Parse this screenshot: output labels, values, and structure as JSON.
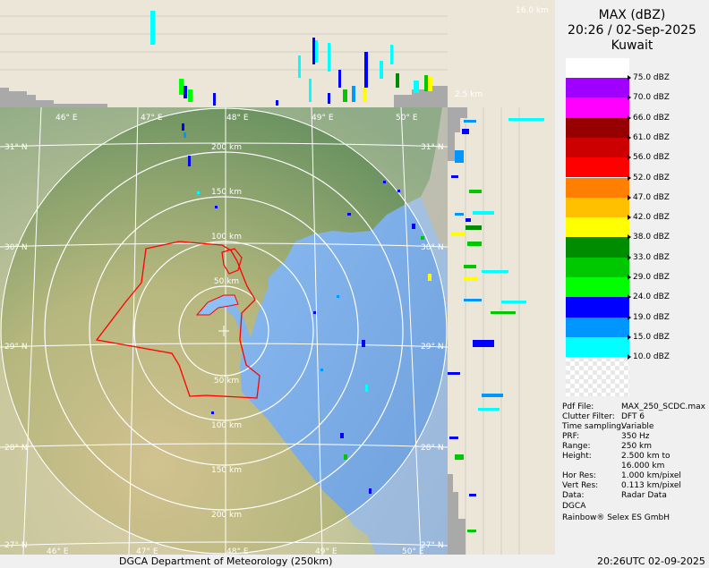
{
  "title": {
    "product": "MAX (dBZ)",
    "datetime": "20:26 / 02-Sep-2025",
    "site": "Kuwait"
  },
  "height_labels": {
    "top": "16.0 km",
    "bottom": "2.5 km"
  },
  "legend_levels": [
    {
      "label": "75.0 dBZ",
      "color": "#a000ff"
    },
    {
      "label": "70.0 dBZ",
      "color": "#ff00ff"
    },
    {
      "label": "66.0 dBZ",
      "color": "#960000"
    },
    {
      "label": "61.0 dBZ",
      "color": "#cc0000"
    },
    {
      "label": "56.0 dBZ",
      "color": "#ff0000"
    },
    {
      "label": "52.0 dBZ",
      "color": "#ff8000"
    },
    {
      "label": "47.0 dBZ",
      "color": "#ffc000"
    },
    {
      "label": "42.0 dBZ",
      "color": "#ffff00"
    },
    {
      "label": "38.0 dBZ",
      "color": "#008c00"
    },
    {
      "label": "33.0 dBZ",
      "color": "#00c800"
    },
    {
      "label": "29.0 dBZ",
      "color": "#00ff00"
    },
    {
      "label": "24.0 dBZ",
      "color": "#0000ff"
    },
    {
      "label": "19.0 dBZ",
      "color": "#0096ff"
    },
    {
      "label": "15.0 dBZ",
      "color": "#00ffff"
    },
    {
      "label": "10.0 dBZ",
      "color": "#ffffff"
    }
  ],
  "info": [
    {
      "key": "Pdf File:",
      "value": "MAX_250_SCDC.max"
    },
    {
      "key": "Clutter Filter:",
      "value": "DFT 6"
    },
    {
      "key": "Time sampling:",
      "value": "Variable"
    },
    {
      "key": "PRF:",
      "value": "350 Hz"
    },
    {
      "key": "Range:",
      "value": "250 km"
    },
    {
      "key": "Height:",
      "value": "2.500 km to"
    },
    {
      "key": "",
      "value": "16.000 km"
    },
    {
      "key": "Hor Res:",
      "value": "1.000 km/pixel"
    },
    {
      "key": "Vert Res:",
      "value": "0.113 km/pixel"
    },
    {
      "key": "Data:",
      "value": "Radar Data"
    }
  ],
  "org": "DGCA",
  "vendor": "Rainbow® Selex ES GmbH",
  "map": {
    "lon_labels": [
      "46° E",
      "47° E",
      "48° E",
      "49° E",
      "50° E"
    ],
    "lat_labels": [
      "31° N",
      "30° N",
      "29° N",
      "28° N",
      "27° N"
    ],
    "range_labels": [
      "50 km",
      "100 km",
      "150 km",
      "200 km"
    ],
    "land_color": "#a8b07a",
    "sea_color": "#8ebff5",
    "border_color": "#ff0000"
  },
  "footer": {
    "left": "DGCA Department of Meteorology (250km)",
    "right": "20:26UTC 02-09-2025"
  }
}
